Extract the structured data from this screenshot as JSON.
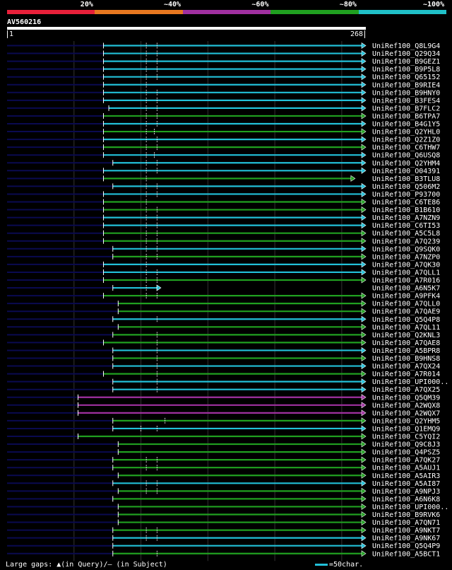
{
  "scale": {
    "labels": [
      "20%",
      "~40%",
      "~60%",
      "~80%",
      "~100%"
    ],
    "colors": [
      "#e8203a",
      "#e87820",
      "#a030a0",
      "#20a020",
      "#20c0c8"
    ]
  },
  "query": {
    "name": "AV560216",
    "start": "1",
    "end": "268",
    "length": 268
  },
  "colors": {
    "cyan": "#22c0d8",
    "green": "#20a020",
    "magenta": "#a030a0",
    "navy": "#0a0a50",
    "grid": "#333333"
  },
  "hits": [
    {
      "name": "UniRef100_Q8L9G4",
      "color": "cyan",
      "start": 72,
      "end": 268,
      "marks": [
        104,
        112
      ]
    },
    {
      "name": "UniRef100_Q29Q34",
      "color": "cyan",
      "start": 72,
      "end": 268,
      "marks": [
        104,
        112
      ]
    },
    {
      "name": "UniRef100_B9GEZ1",
      "color": "cyan",
      "start": 72,
      "end": 268,
      "marks": [
        104,
        112
      ]
    },
    {
      "name": "UniRef100_B9P5L8",
      "color": "cyan",
      "start": 72,
      "end": 268,
      "marks": [
        104,
        112
      ]
    },
    {
      "name": "UniRef100_Q65152",
      "color": "cyan",
      "start": 72,
      "end": 268,
      "marks": [
        104,
        112
      ]
    },
    {
      "name": "UniRef100_B9RIE4",
      "color": "cyan",
      "start": 72,
      "end": 268,
      "marks": [
        104
      ]
    },
    {
      "name": "UniRef100_B9HNY0",
      "color": "cyan",
      "start": 72,
      "end": 268,
      "marks": [
        104,
        112
      ]
    },
    {
      "name": "UniRef100_B3FES4",
      "color": "cyan",
      "start": 72,
      "end": 268,
      "marks": [
        104,
        112
      ]
    },
    {
      "name": "UniRef100_B7FLC2",
      "color": "cyan",
      "start": 76,
      "end": 268,
      "marks": [
        104,
        112
      ]
    },
    {
      "name": "UniRef100_B6TPA7",
      "color": "green",
      "start": 72,
      "end": 268,
      "marks": [
        104,
        112
      ]
    },
    {
      "name": "UniRef100_B4G1Y5",
      "color": "cyan",
      "start": 72,
      "end": 268,
      "marks": [
        104,
        112
      ]
    },
    {
      "name": "UniRef100_Q2YHL0",
      "color": "green",
      "start": 72,
      "end": 268,
      "marks": [
        104,
        110
      ]
    },
    {
      "name": "UniRef100_Q2Z1Z0",
      "color": "cyan",
      "start": 72,
      "end": 268,
      "marks": [
        104,
        112
      ]
    },
    {
      "name": "UniRef100_C6THW7",
      "color": "green",
      "start": 72,
      "end": 268,
      "marks": [
        104,
        112
      ]
    },
    {
      "name": "UniRef100_Q6USQ8",
      "color": "cyan",
      "start": 72,
      "end": 268,
      "marks": [
        104,
        110
      ]
    },
    {
      "name": "UniRef100_Q2YHM4",
      "color": "cyan",
      "start": 79,
      "end": 268,
      "marks": [
        104,
        112
      ]
    },
    {
      "name": "UniRef100_O04391",
      "color": "cyan",
      "start": 72,
      "end": 268,
      "marks": [
        104,
        112
      ]
    },
    {
      "name": "UniRef100_B3TLU8",
      "color": "green",
      "start": 72,
      "end": 260,
      "marks": [
        104
      ]
    },
    {
      "name": "UniRef100_Q506M2",
      "color": "cyan",
      "start": 79,
      "end": 268,
      "marks": [
        104,
        112
      ]
    },
    {
      "name": "UniRef100_P93700",
      "color": "cyan",
      "start": 72,
      "end": 268,
      "marks": [
        104,
        112
      ]
    },
    {
      "name": "UniRef100_C6TE86",
      "color": "green",
      "start": 72,
      "end": 268,
      "marks": [
        104
      ]
    },
    {
      "name": "UniRef100_B1B610",
      "color": "green",
      "start": 72,
      "end": 268,
      "marks": [
        104,
        112
      ]
    },
    {
      "name": "UniRef100_A7NZN9",
      "color": "cyan",
      "start": 72,
      "end": 268,
      "marks": [
        104,
        112
      ]
    },
    {
      "name": "UniRef100_C6TI53",
      "color": "cyan",
      "start": 72,
      "end": 268,
      "marks": [
        104,
        112
      ]
    },
    {
      "name": "UniRef100_A5C5L8",
      "color": "green",
      "start": 72,
      "end": 268,
      "marks": [
        104,
        112
      ]
    },
    {
      "name": "UniRef100_A7Q239",
      "color": "green",
      "start": 72,
      "end": 268,
      "marks": [
        104,
        112
      ]
    },
    {
      "name": "UniRef100_Q9SQK0",
      "color": "cyan",
      "start": 79,
      "end": 268,
      "marks": [
        104,
        112
      ]
    },
    {
      "name": "UniRef100_A7NZP0",
      "color": "green",
      "start": 79,
      "end": 268,
      "marks": [
        104,
        112
      ]
    },
    {
      "name": "UniRef100_A7QK30",
      "color": "cyan",
      "start": 72,
      "end": 268,
      "marks": [
        104
      ]
    },
    {
      "name": "UniRef100_A7QLL1",
      "color": "cyan",
      "start": 72,
      "end": 268,
      "marks": [
        104,
        112
      ]
    },
    {
      "name": "UniRef100_A7R016",
      "color": "green",
      "start": 72,
      "end": 268,
      "marks": [
        104,
        112
      ]
    },
    {
      "name": "UniRef100_A6N5K7",
      "color": "cyan",
      "start": 79,
      "end": 115,
      "marks": [
        104,
        112
      ]
    },
    {
      "name": "UniRef100_A9PFK4",
      "color": "green",
      "start": 72,
      "end": 268,
      "marks": [
        104,
        112
      ]
    },
    {
      "name": "UniRef100_A7QLL0",
      "color": "green",
      "start": 83,
      "end": 268,
      "marks": []
    },
    {
      "name": "UniRef100_A7QAE9",
      "color": "green",
      "start": 83,
      "end": 268,
      "marks": []
    },
    {
      "name": "UniRef100_Q5Q4P8",
      "color": "cyan",
      "start": 79,
      "end": 268,
      "marks": [
        112
      ]
    },
    {
      "name": "UniRef100_A7QL11",
      "color": "green",
      "start": 83,
      "end": 268,
      "marks": []
    },
    {
      "name": "UniRef100_Q2KNL3",
      "color": "green",
      "start": 79,
      "end": 268,
      "marks": [
        112
      ]
    },
    {
      "name": "UniRef100_A7QAE8",
      "color": "green",
      "start": 72,
      "end": 268,
      "marks": [
        112
      ]
    },
    {
      "name": "UniRef100_A5BPR8",
      "color": "cyan",
      "start": 79,
      "end": 268,
      "marks": [
        112
      ]
    },
    {
      "name": "UniRef100_B9HNS8",
      "color": "green",
      "start": 79,
      "end": 268,
      "marks": [
        112
      ]
    },
    {
      "name": "UniRef100_A7QX24",
      "color": "cyan",
      "start": 79,
      "end": 268,
      "marks": [
        112
      ]
    },
    {
      "name": "UniRef100_A7R014",
      "color": "green",
      "start": 72,
      "end": 268,
      "marks": [
        112
      ]
    },
    {
      "name": "UniRef100_UPI000..",
      "color": "cyan",
      "start": 79,
      "end": 268,
      "marks": [
        112
      ]
    },
    {
      "name": "UniRef100_A7QX25",
      "color": "cyan",
      "start": 79,
      "end": 268,
      "marks": [
        112
      ]
    },
    {
      "name": "UniRef100_Q5QM39",
      "color": "magenta",
      "start": 53,
      "end": 268,
      "marks": []
    },
    {
      "name": "UniRef100_A2WQX8",
      "color": "magenta",
      "start": 53,
      "end": 268,
      "marks": []
    },
    {
      "name": "UniRef100_A2WQX7",
      "color": "magenta",
      "start": 53,
      "end": 268,
      "marks": []
    },
    {
      "name": "UniRef100_Q2YHM5",
      "color": "green",
      "start": 79,
      "end": 268,
      "marks": [
        118
      ]
    },
    {
      "name": "UniRef100_Q1EMQ9",
      "color": "cyan",
      "start": 79,
      "end": 268,
      "marks": [
        100,
        112
      ]
    },
    {
      "name": "UniRef100_C5YQI2",
      "color": "green",
      "start": 53,
      "end": 268,
      "marks": []
    },
    {
      "name": "UniRef100_Q9C8J3",
      "color": "green",
      "start": 83,
      "end": 268,
      "marks": []
    },
    {
      "name": "UniRef100_Q4PSZ5",
      "color": "green",
      "start": 83,
      "end": 268,
      "marks": []
    },
    {
      "name": "UniRef100_A7QK27",
      "color": "green",
      "start": 79,
      "end": 268,
      "marks": [
        104,
        112
      ]
    },
    {
      "name": "UniRef100_A5AUJ1",
      "color": "green",
      "start": 79,
      "end": 268,
      "marks": [
        104,
        112
      ]
    },
    {
      "name": "UniRef100_A5AIR3",
      "color": "green",
      "start": 83,
      "end": 268,
      "marks": []
    },
    {
      "name": "UniRef100_A5AI87",
      "color": "cyan",
      "start": 79,
      "end": 268,
      "marks": [
        104,
        112
      ]
    },
    {
      "name": "UniRef100_A9NPJ3",
      "color": "green",
      "start": 83,
      "end": 268,
      "marks": [
        104,
        112
      ]
    },
    {
      "name": "UniRef100_A6N6K8",
      "color": "green",
      "start": 79,
      "end": 268,
      "marks": []
    },
    {
      "name": "UniRef100_UPI000..",
      "color": "green",
      "start": 83,
      "end": 268,
      "marks": []
    },
    {
      "name": "UniRef100_B9RVK6",
      "color": "green",
      "start": 83,
      "end": 268,
      "marks": []
    },
    {
      "name": "UniRef100_A7QN71",
      "color": "green",
      "start": 83,
      "end": 268,
      "marks": []
    },
    {
      "name": "UniRef100_A9NKT7",
      "color": "green",
      "start": 79,
      "end": 268,
      "marks": [
        104,
        112
      ]
    },
    {
      "name": "UniRef100_A9NK67",
      "color": "cyan",
      "start": 79,
      "end": 268,
      "marks": [
        104,
        112
      ]
    },
    {
      "name": "UniRef100_Q5Q4P9",
      "color": "cyan",
      "start": 79,
      "end": 268,
      "marks": []
    },
    {
      "name": "UniRef100_A5BCT1",
      "color": "green",
      "start": 79,
      "end": 268,
      "marks": [
        112
      ]
    }
  ],
  "footer": {
    "gaps_text": "Large gaps: ▲(in Query)/– (in Subject)",
    "legend_text": "=50char."
  }
}
